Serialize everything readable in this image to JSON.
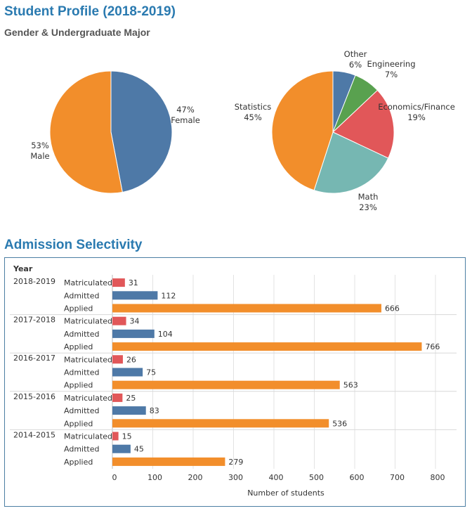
{
  "header": {
    "title": "Student Profile (2018-2019)",
    "subtitle": "Gender & Undergraduate Major"
  },
  "admission": {
    "title": "Admission Selectivity"
  },
  "colors": {
    "blue": "#4e79a7",
    "orange": "#f28e2b",
    "red": "#e15759",
    "teal": "#76b7b2",
    "green": "#59a14f",
    "title_blue": "#2a7ab0",
    "frame": "#4c7fa3"
  },
  "chart_data": [
    {
      "type": "pie",
      "slices": [
        {
          "label": "Female",
          "value": 47,
          "pct_label": "47%",
          "color": "#4e79a7"
        },
        {
          "label": "Male",
          "value": 53,
          "pct_label": "53%",
          "color": "#f28e2b"
        }
      ]
    },
    {
      "type": "pie",
      "slices": [
        {
          "label": "Other",
          "value": 6,
          "pct_label": "6%",
          "color": "#4e79a7"
        },
        {
          "label": "Engineering",
          "value": 7,
          "pct_label": "7%",
          "color": "#59a14f"
        },
        {
          "label": "Economics/Finance",
          "value": 19,
          "pct_label": "19%",
          "color": "#e15759"
        },
        {
          "label": "Math",
          "value": 23,
          "pct_label": "23%",
          "color": "#76b7b2"
        },
        {
          "label": "Statistics",
          "value": 45,
          "pct_label": "45%",
          "color": "#f28e2b"
        }
      ]
    },
    {
      "type": "bar",
      "orientation": "horizontal",
      "row_header": "Year",
      "xlabel": "Number of students",
      "xlim": [
        0,
        800
      ],
      "xticks": [
        0,
        100,
        200,
        300,
        400,
        500,
        600,
        700,
        800
      ],
      "grid": true,
      "groups": [
        {
          "year": "2018-2019",
          "rows": [
            {
              "label": "Matriculated",
              "value": 31,
              "color": "#e15759"
            },
            {
              "label": "Admitted",
              "value": 112,
              "color": "#4e79a7"
            },
            {
              "label": "Applied",
              "value": 666,
              "color": "#f28e2b"
            }
          ]
        },
        {
          "year": "2017-2018",
          "rows": [
            {
              "label": "Matriculated",
              "value": 34,
              "color": "#e15759"
            },
            {
              "label": "Admitted",
              "value": 104,
              "color": "#4e79a7"
            },
            {
              "label": "Applied",
              "value": 766,
              "color": "#f28e2b"
            }
          ]
        },
        {
          "year": "2016-2017",
          "rows": [
            {
              "label": "Matriculated",
              "value": 26,
              "color": "#e15759"
            },
            {
              "label": "Admitted",
              "value": 75,
              "color": "#4e79a7"
            },
            {
              "label": "Applied",
              "value": 563,
              "color": "#f28e2b"
            }
          ]
        },
        {
          "year": "2015-2016",
          "rows": [
            {
              "label": "Matriculated",
              "value": 25,
              "color": "#e15759"
            },
            {
              "label": "Admitted",
              "value": 83,
              "color": "#4e79a7"
            },
            {
              "label": "Applied",
              "value": 536,
              "color": "#f28e2b"
            }
          ]
        },
        {
          "year": "2014-2015",
          "rows": [
            {
              "label": "Matriculated",
              "value": 15,
              "color": "#e15759"
            },
            {
              "label": "Admitted",
              "value": 45,
              "color": "#4e79a7"
            },
            {
              "label": "Applied",
              "value": 279,
              "color": "#f28e2b"
            }
          ]
        }
      ]
    }
  ]
}
